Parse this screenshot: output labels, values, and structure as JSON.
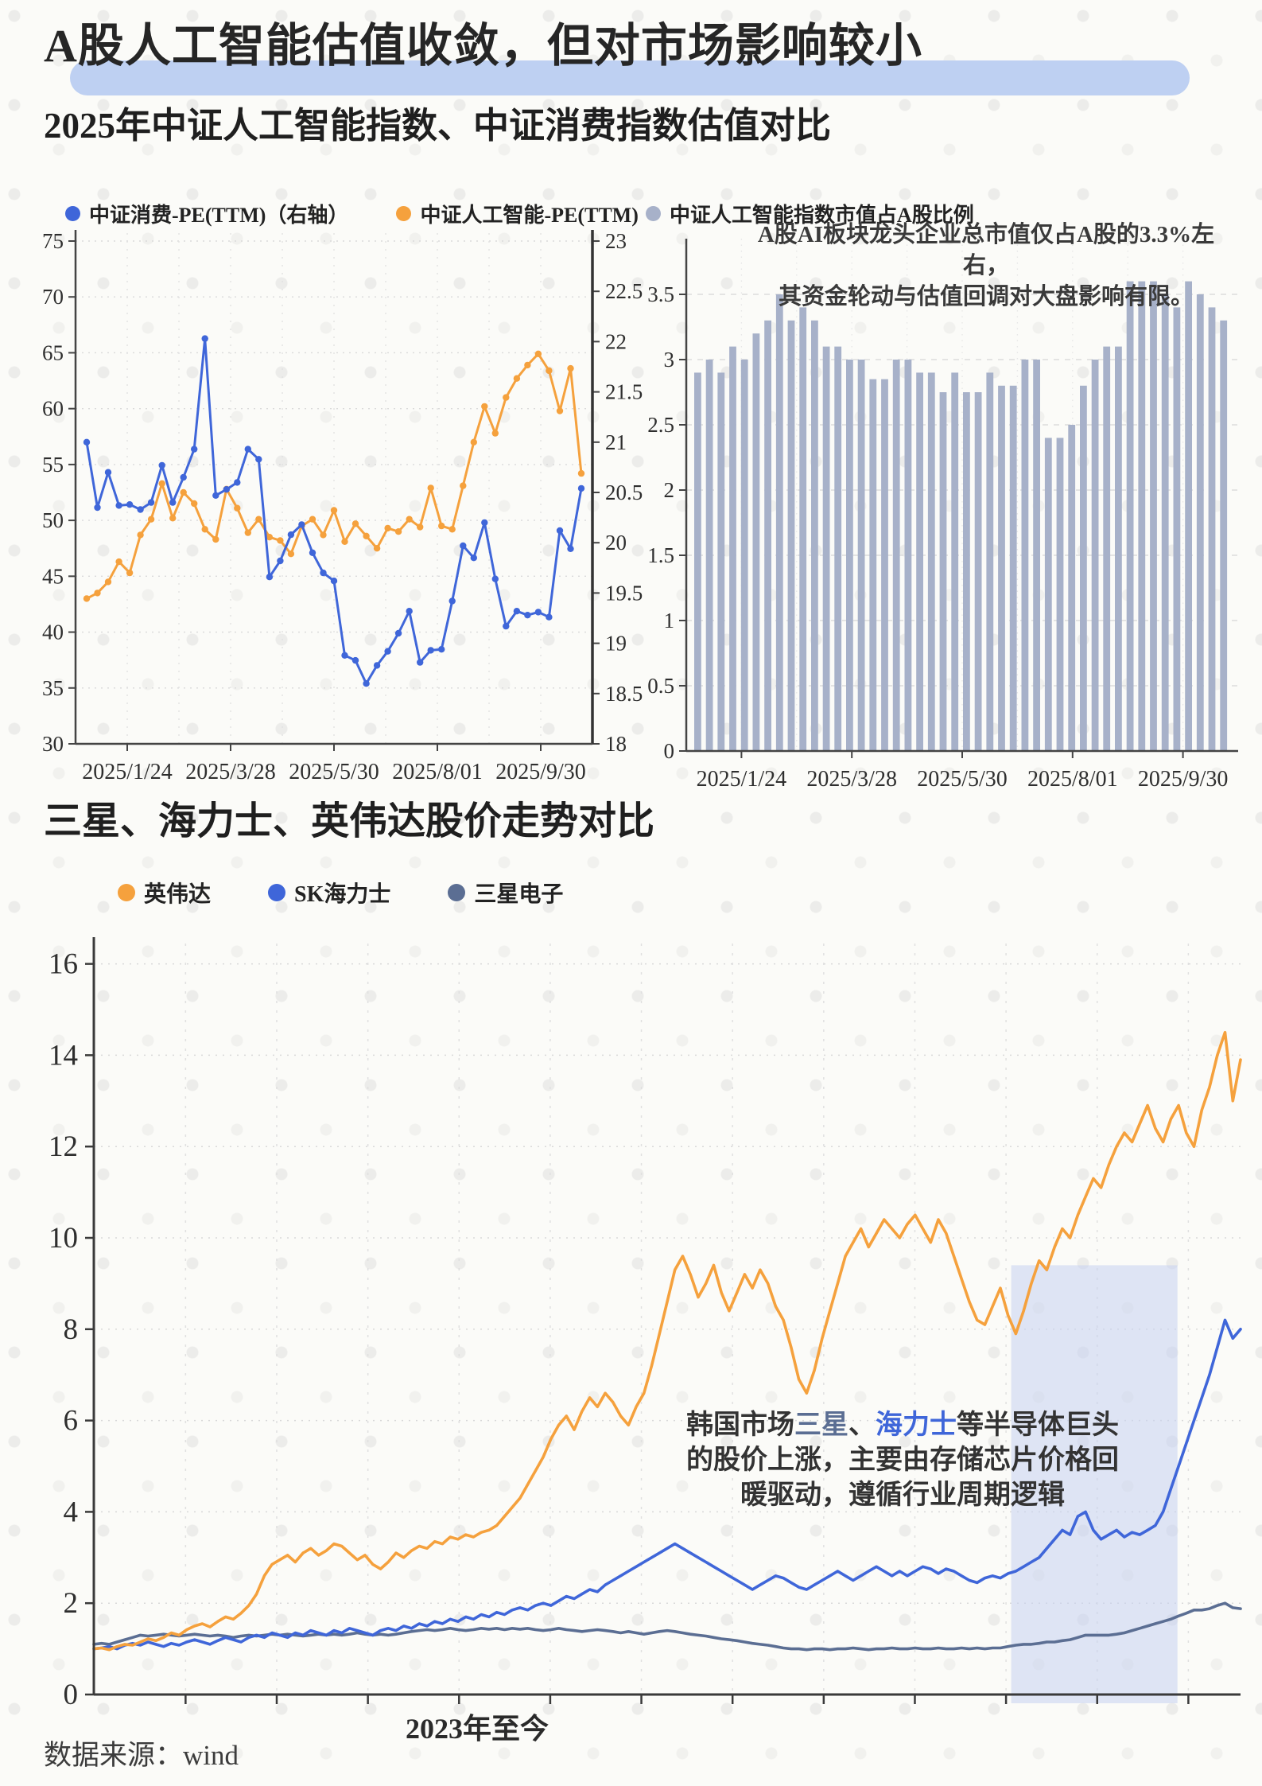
{
  "header": {
    "title": "A股人工智能估值收敛，但对市场影响较小",
    "subtitle": "2025年中证人工智能指数、中证消费指数估值对比",
    "section2_title": "三星、海力士、英伟达股价走势对比"
  },
  "footer": {
    "text": "数据来源：wind"
  },
  "colors": {
    "background": "#fbfbf8",
    "title_highlight": "#bed0f2",
    "ai_orange": "#f5a13d",
    "consumer_blue": "#3f66d9",
    "bar_gray_blue": "#a7b1c9",
    "samsung_slate": "#5b6e93",
    "highlight_band": "#c7d2f0"
  },
  "chart_data": [
    {
      "id": "pe-compare",
      "type": "line",
      "title": "2025年中证人工智能指数、中证消费指数估值对比",
      "x_tick_labels": [
        "2025/1/24",
        "2025/3/28",
        "2025/5/30",
        "2025/8/01",
        "2025/9/30"
      ],
      "axis_left": {
        "min": 30,
        "max": 75,
        "step": 5
      },
      "axis_right": {
        "min": 18,
        "max": 23,
        "step": 0.5
      },
      "grid": true,
      "legend_position": "top-left",
      "series": [
        {
          "name": "中证消费-PE(TTM)（右轴）",
          "axis": "right",
          "color": "#3f66d9",
          "values": [
            21.0,
            20.35,
            20.7,
            20.37,
            20.38,
            20.33,
            20.4,
            20.77,
            20.4,
            20.65,
            20.93,
            22.03,
            20.47,
            20.53,
            20.6,
            20.93,
            20.83,
            19.66,
            19.82,
            20.08,
            20.18,
            19.9,
            19.7,
            19.62,
            18.88,
            18.83,
            18.6,
            18.78,
            18.92,
            19.1,
            19.32,
            18.81,
            18.93,
            18.94,
            19.42,
            19.97,
            19.85,
            20.2,
            19.64,
            19.17,
            19.32,
            19.28,
            19.31,
            19.26,
            20.12,
            19.94,
            20.54
          ]
        },
        {
          "name": "中证人工智能-PE(TTM)",
          "axis": "left",
          "color": "#f5a13d",
          "values": [
            43.0,
            43.5,
            44.5,
            46.3,
            45.3,
            48.7,
            50.1,
            53.3,
            50.2,
            52.5,
            51.5,
            49.2,
            48.3,
            52.8,
            51.1,
            48.9,
            50.1,
            48.5,
            48.2,
            47.0,
            49.5,
            50.1,
            48.7,
            50.9,
            48.1,
            49.7,
            48.6,
            47.5,
            49.3,
            49.0,
            50.1,
            49.4,
            52.9,
            49.5,
            49.2,
            53.1,
            57.0,
            60.2,
            57.8,
            61.0,
            62.7,
            63.9,
            64.9,
            63.4,
            59.8,
            63.6,
            54.2
          ]
        }
      ]
    },
    {
      "id": "ai-market-share",
      "type": "bar",
      "legend": "中证人工智能指数市值占A股比例",
      "color": "#a7b1c9",
      "axis": {
        "min": 0,
        "max": 3.5,
        "step": 0.5
      },
      "x_tick_labels": [
        "2025/1/24",
        "2025/3/28",
        "2025/5/30",
        "2025/8/01",
        "2025/9/30"
      ],
      "annotation": [
        "A股AI板块龙头企业总市值仅占A股的3.3%左右，",
        "其资金轮动与估值回调对大盘影响有限。"
      ],
      "values": [
        2.9,
        3.0,
        2.9,
        3.1,
        3.0,
        3.2,
        3.3,
        3.5,
        3.3,
        3.4,
        3.3,
        3.1,
        3.1,
        3.0,
        3.0,
        2.85,
        2.85,
        3.0,
        3.0,
        2.9,
        2.9,
        2.75,
        2.9,
        2.75,
        2.75,
        2.9,
        2.8,
        2.8,
        3.0,
        3.0,
        2.4,
        2.4,
        2.5,
        2.8,
        3.0,
        3.1,
        3.1,
        3.6,
        3.6,
        3.6,
        3.5,
        3.4,
        3.6,
        3.5,
        3.4,
        3.3
      ]
    },
    {
      "id": "stock-compare",
      "type": "line",
      "title": "三星、海力士、英伟达股价走势对比",
      "x_caption": "2023年至今",
      "axis": {
        "min": 0,
        "max": 16,
        "step": 2
      },
      "highlight_region": {
        "x_start_frac": 0.8,
        "x_end_frac": 0.945,
        "top_value": 9.4,
        "color": "#c7d2f0"
      },
      "note": {
        "pre": "韩国市场",
        "samsung_word": "三星",
        "sep": "、",
        "hynix_word": "海力士",
        "post": "等半导体巨头",
        "line2": "的股价上涨，主要由存储芯片价格回",
        "line3": "暖驱动，遵循行业周期逻辑"
      },
      "series": [
        {
          "name": "英伟达",
          "color": "#f5a13d",
          "values": [
            1.0,
            1.02,
            0.98,
            1.05,
            1.1,
            1.08,
            1.15,
            1.22,
            1.18,
            1.25,
            1.35,
            1.3,
            1.42,
            1.5,
            1.55,
            1.48,
            1.6,
            1.7,
            1.65,
            1.78,
            1.95,
            2.2,
            2.6,
            2.85,
            2.95,
            3.05,
            2.9,
            3.1,
            3.2,
            3.05,
            3.15,
            3.3,
            3.25,
            3.1,
            2.95,
            3.05,
            2.85,
            2.75,
            2.9,
            3.1,
            3.0,
            3.15,
            3.25,
            3.2,
            3.35,
            3.3,
            3.45,
            3.4,
            3.5,
            3.45,
            3.55,
            3.6,
            3.7,
            3.9,
            4.1,
            4.3,
            4.6,
            4.9,
            5.2,
            5.6,
            5.9,
            6.1,
            5.8,
            6.2,
            6.5,
            6.3,
            6.6,
            6.4,
            6.1,
            5.9,
            6.3,
            6.6,
            7.2,
            7.9,
            8.6,
            9.3,
            9.6,
            9.2,
            8.7,
            9.0,
            9.4,
            8.8,
            8.4,
            8.8,
            9.2,
            8.9,
            9.3,
            9.0,
            8.5,
            8.2,
            7.6,
            6.9,
            6.6,
            7.1,
            7.8,
            8.4,
            9.0,
            9.6,
            9.9,
            10.2,
            9.8,
            10.1,
            10.4,
            10.2,
            10.0,
            10.3,
            10.5,
            10.2,
            9.9,
            10.4,
            10.1,
            9.6,
            9.1,
            8.6,
            8.2,
            8.1,
            8.5,
            8.9,
            8.3,
            7.9,
            8.4,
            9.0,
            9.5,
            9.3,
            9.8,
            10.2,
            10.0,
            10.5,
            10.9,
            11.3,
            11.1,
            11.6,
            12.0,
            12.3,
            12.1,
            12.5,
            12.9,
            12.4,
            12.1,
            12.6,
            12.9,
            12.3,
            12.0,
            12.8,
            13.3,
            14.0,
            14.5,
            13.0,
            13.9
          ]
        },
        {
          "name": "SK海力士",
          "color": "#3f66d9",
          "values": [
            1.0,
            1.02,
            1.05,
            1.0,
            1.08,
            1.12,
            1.08,
            1.15,
            1.1,
            1.05,
            1.12,
            1.08,
            1.15,
            1.2,
            1.15,
            1.1,
            1.18,
            1.25,
            1.2,
            1.15,
            1.25,
            1.3,
            1.25,
            1.35,
            1.3,
            1.25,
            1.35,
            1.3,
            1.4,
            1.35,
            1.3,
            1.4,
            1.35,
            1.45,
            1.4,
            1.35,
            1.3,
            1.4,
            1.45,
            1.4,
            1.5,
            1.45,
            1.55,
            1.5,
            1.6,
            1.55,
            1.65,
            1.6,
            1.7,
            1.65,
            1.75,
            1.7,
            1.8,
            1.75,
            1.85,
            1.9,
            1.85,
            1.95,
            2.0,
            1.95,
            2.05,
            2.15,
            2.1,
            2.2,
            2.3,
            2.25,
            2.4,
            2.5,
            2.6,
            2.7,
            2.8,
            2.9,
            3.0,
            3.1,
            3.2,
            3.3,
            3.2,
            3.1,
            3.0,
            2.9,
            2.8,
            2.7,
            2.6,
            2.5,
            2.4,
            2.3,
            2.4,
            2.5,
            2.6,
            2.55,
            2.45,
            2.35,
            2.3,
            2.4,
            2.5,
            2.6,
            2.7,
            2.6,
            2.5,
            2.6,
            2.7,
            2.8,
            2.7,
            2.6,
            2.7,
            2.6,
            2.7,
            2.8,
            2.75,
            2.65,
            2.75,
            2.7,
            2.6,
            2.5,
            2.45,
            2.55,
            2.6,
            2.55,
            2.65,
            2.7,
            2.8,
            2.9,
            3.0,
            3.2,
            3.4,
            3.6,
            3.5,
            3.9,
            4.0,
            3.6,
            3.4,
            3.5,
            3.6,
            3.45,
            3.55,
            3.5,
            3.6,
            3.7,
            4.0,
            4.5,
            5.0,
            5.5,
            6.0,
            6.5,
            7.0,
            7.6,
            8.2,
            7.8,
            8.0
          ]
        },
        {
          "name": "三星电子",
          "color": "#5b6e93",
          "values": [
            1.1,
            1.12,
            1.1,
            1.15,
            1.2,
            1.25,
            1.3,
            1.28,
            1.3,
            1.32,
            1.3,
            1.28,
            1.3,
            1.32,
            1.3,
            1.28,
            1.3,
            1.28,
            1.25,
            1.28,
            1.3,
            1.28,
            1.3,
            1.32,
            1.3,
            1.32,
            1.3,
            1.28,
            1.3,
            1.32,
            1.3,
            1.32,
            1.3,
            1.32,
            1.35,
            1.32,
            1.3,
            1.32,
            1.3,
            1.32,
            1.35,
            1.38,
            1.4,
            1.42,
            1.4,
            1.42,
            1.45,
            1.42,
            1.4,
            1.42,
            1.45,
            1.43,
            1.45,
            1.42,
            1.45,
            1.43,
            1.45,
            1.42,
            1.4,
            1.42,
            1.45,
            1.42,
            1.4,
            1.38,
            1.4,
            1.42,
            1.4,
            1.38,
            1.35,
            1.38,
            1.35,
            1.32,
            1.35,
            1.38,
            1.4,
            1.38,
            1.35,
            1.32,
            1.3,
            1.28,
            1.25,
            1.22,
            1.2,
            1.18,
            1.15,
            1.12,
            1.1,
            1.08,
            1.05,
            1.02,
            1.0,
            1.0,
            0.98,
            1.0,
            1.0,
            0.98,
            1.0,
            1.0,
            1.02,
            1.0,
            0.98,
            1.0,
            1.0,
            1.02,
            1.0,
            1.0,
            1.02,
            1.0,
            1.0,
            1.02,
            1.0,
            1.0,
            1.02,
            1.0,
            1.02,
            1.0,
            1.02,
            1.02,
            1.05,
            1.08,
            1.1,
            1.1,
            1.12,
            1.15,
            1.15,
            1.18,
            1.2,
            1.25,
            1.3,
            1.3,
            1.3,
            1.3,
            1.32,
            1.35,
            1.4,
            1.45,
            1.5,
            1.55,
            1.6,
            1.65,
            1.72,
            1.78,
            1.85,
            1.85,
            1.88,
            1.95,
            2.0,
            1.9,
            1.88
          ]
        }
      ]
    }
  ]
}
